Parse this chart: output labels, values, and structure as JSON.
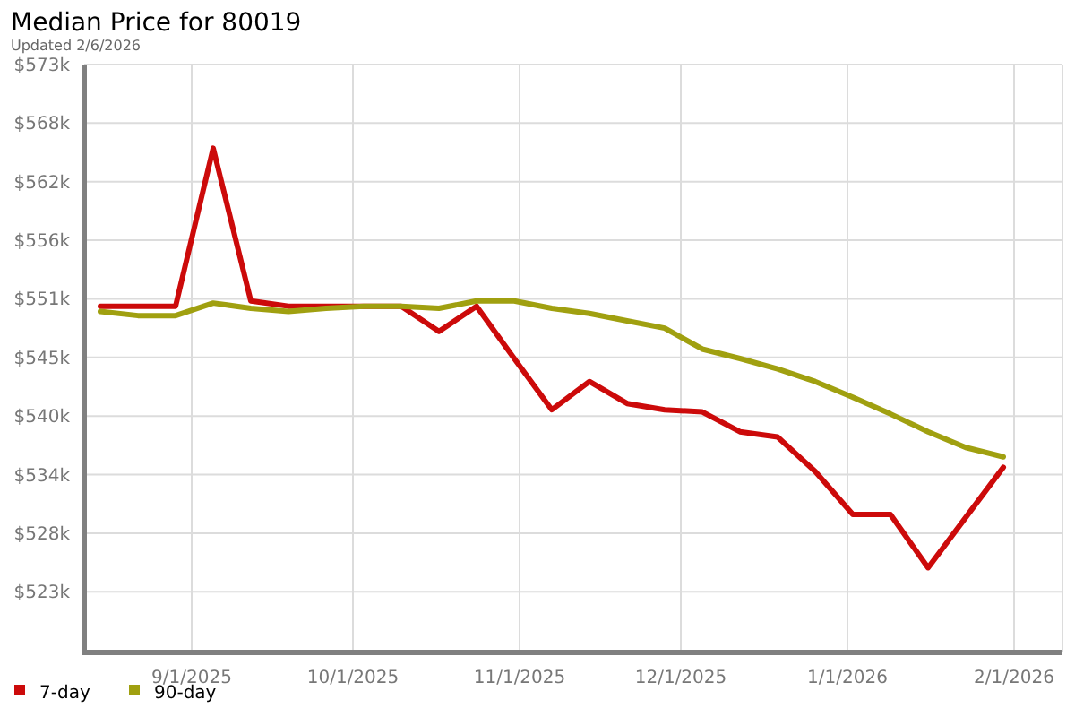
{
  "chart_data": {
    "type": "line",
    "title": "Median Price for 80019",
    "subtitle": "Updated 2/6/2026",
    "x": [
      "2025-08-15",
      "2025-08-22",
      "2025-08-29",
      "2025-09-05",
      "2025-09-12",
      "2025-09-19",
      "2025-09-26",
      "2025-10-03",
      "2025-10-10",
      "2025-10-17",
      "2025-10-24",
      "2025-10-31",
      "2025-11-07",
      "2025-11-14",
      "2025-11-21",
      "2025-11-28",
      "2025-12-05",
      "2025-12-12",
      "2025-12-19",
      "2025-12-26",
      "2026-01-02",
      "2026-01-09",
      "2026-01-16",
      "2026-01-23",
      "2026-01-30"
    ],
    "series": [
      {
        "name": "7-day",
        "color": "#cc0a0a",
        "values": [
          550100,
          550100,
          550100,
          565200,
          550600,
          550100,
          550100,
          550100,
          550100,
          547700,
          550100,
          545100,
          540200,
          542900,
          540800,
          540200,
          540000,
          538100,
          537600,
          534300,
          530200,
          530200,
          525100,
          529900,
          534700
        ]
      },
      {
        "name": "90-day",
        "color": "#a0a010",
        "values": [
          549600,
          549200,
          549200,
          550400,
          549900,
          549600,
          549900,
          550100,
          550100,
          549900,
          550600,
          550600,
          549900,
          549400,
          548700,
          548000,
          546000,
          545100,
          544100,
          542900,
          541400,
          539800,
          538100,
          536600,
          535700
        ]
      }
    ],
    "xlim": [
      "2025-08-12",
      "2026-02-10"
    ],
    "xticks": [
      {
        "value": "2025-09-01",
        "label": "9/1/2025"
      },
      {
        "value": "2025-10-01",
        "label": "10/1/2025"
      },
      {
        "value": "2025-11-01",
        "label": "11/1/2025"
      },
      {
        "value": "2025-12-01",
        "label": "12/1/2025"
      },
      {
        "value": "2026-01-01",
        "label": "1/1/2026"
      },
      {
        "value": "2026-02-01",
        "label": "2/1/2026"
      }
    ],
    "ylim": [
      517000,
      573200
    ],
    "yticks": [
      {
        "value": 573200,
        "label": "$573k"
      },
      {
        "value": 567600,
        "label": "$568k"
      },
      {
        "value": 562000,
        "label": "$562k"
      },
      {
        "value": 556400,
        "label": "$556k"
      },
      {
        "value": 550800,
        "label": "$551k"
      },
      {
        "value": 545200,
        "label": "$545k"
      },
      {
        "value": 539600,
        "label": "$540k"
      },
      {
        "value": 534000,
        "label": "$534k"
      },
      {
        "value": 528400,
        "label": "$528k"
      },
      {
        "value": 522800,
        "label": "$523k"
      }
    ],
    "grid": true,
    "legend": "bottom left",
    "marker": "none",
    "line_style": "solid"
  }
}
